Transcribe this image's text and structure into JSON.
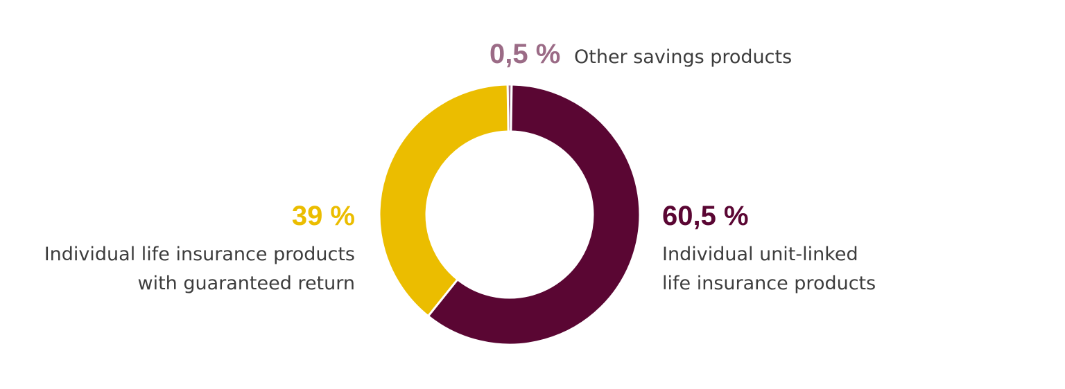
{
  "chart_data": {
    "type": "pie",
    "donut": true,
    "title": "",
    "slices": [
      {
        "label": "Other savings products",
        "value": 0.5,
        "display": "0,5 %",
        "color": "#9b6b86"
      },
      {
        "label_lines": [
          "Individual unit-linked",
          "life insurance products"
        ],
        "value": 60.5,
        "display": "60,5 %",
        "color": "#5a0633"
      },
      {
        "label_lines": [
          "Individual life insurance products",
          "with guaranteed return"
        ],
        "value": 39,
        "display": "39 %",
        "color": "#ebbd00"
      }
    ]
  }
}
